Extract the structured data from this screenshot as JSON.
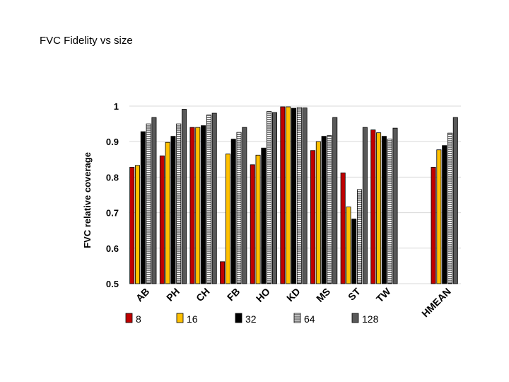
{
  "page": {
    "title": "FVC Fidelity vs size"
  },
  "colors": {
    "s8": "#c00000",
    "s16": "#ffc000",
    "s32": "#000000",
    "s64": "hatch-horizontal",
    "s128": "#595959",
    "grid": "#d9d9d9"
  },
  "chart_data": {
    "type": "bar",
    "title": "",
    "xlabel": "",
    "ylabel": "FVC relative coverage",
    "ylim": [
      0.5,
      1.0
    ],
    "yticks": [
      "0.5",
      "0.6",
      "0.7",
      "0.8",
      "0.9",
      "1"
    ],
    "grid": true,
    "legend_position": "bottom",
    "categories": [
      "AB",
      "PH",
      "CH",
      "FB",
      "HO",
      "KD",
      "MS",
      "ST",
      "TW",
      "",
      "HMEAN"
    ],
    "series": [
      {
        "name": "8",
        "values": [
          0.828,
          0.86,
          0.94,
          0.562,
          0.835,
          0.998,
          0.875,
          0.812,
          0.933,
          null,
          0.828
        ]
      },
      {
        "name": "16",
        "values": [
          0.833,
          0.898,
          0.94,
          0.865,
          0.862,
          0.998,
          0.9,
          0.716,
          0.925,
          null,
          0.877
        ]
      },
      {
        "name": "32",
        "values": [
          0.928,
          0.915,
          0.945,
          0.907,
          0.882,
          0.994,
          0.915,
          0.682,
          0.915,
          null,
          0.889
        ]
      },
      {
        "name": "64",
        "values": [
          0.95,
          0.95,
          0.975,
          0.926,
          0.985,
          0.996,
          0.917,
          0.765,
          0.907,
          null,
          0.924
        ]
      },
      {
        "name": "128",
        "values": [
          0.968,
          0.991,
          0.98,
          0.94,
          0.982,
          0.995,
          0.968,
          0.94,
          0.938,
          null,
          0.968
        ]
      }
    ]
  }
}
